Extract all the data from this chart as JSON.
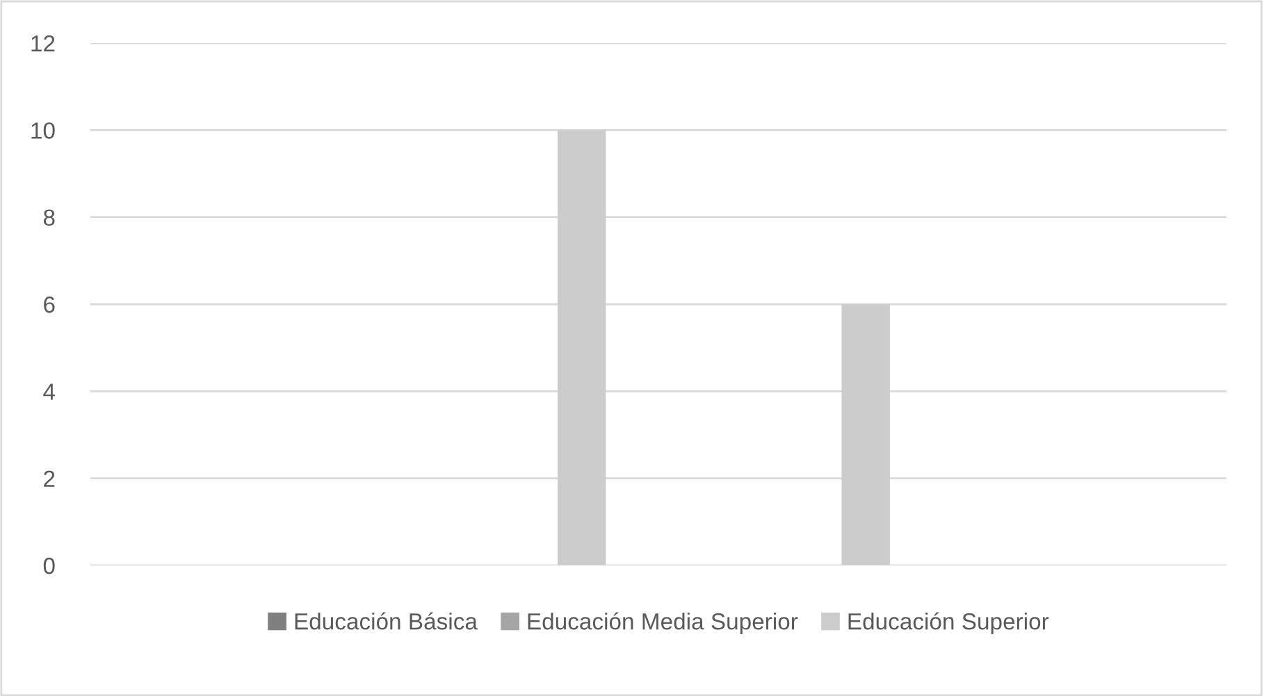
{
  "chart_data": {
    "type": "bar",
    "categories": [
      null,
      null,
      null,
      null
    ],
    "series": [
      {
        "name": "Educación Básica",
        "color": "#7f7f7f",
        "values": [
          0,
          0,
          0,
          0
        ]
      },
      {
        "name": "Educación Media Superior",
        "color": "#a5a5a5",
        "values": [
          0,
          0,
          0,
          0
        ]
      },
      {
        "name": "Educación Superior",
        "color": "#cccccc",
        "values": [
          0,
          10,
          6,
          0
        ]
      }
    ],
    "ylim": [
      0,
      12
    ],
    "yticks": [
      0,
      2,
      4,
      6,
      8,
      10,
      12
    ],
    "grid": "y",
    "legend": "bottom"
  }
}
